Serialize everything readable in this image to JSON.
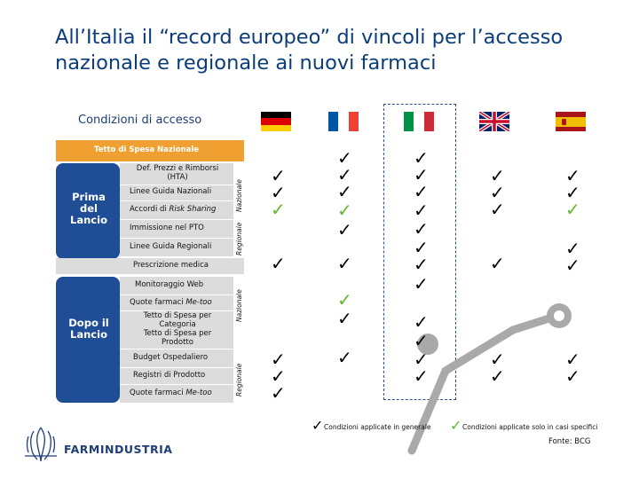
{
  "title": "All’Italia il “record europeo” di vincoli per l’accesso nazionale e regionale ai nuovi farmaci",
  "subtitle": "Condizioni di accesso",
  "top_bar_label": "Tetto di Spesa Nazionale",
  "phases": {
    "prima": "Prima del Lancio",
    "dopo": "Dopo il Lancio"
  },
  "level_labels": {
    "nazionale": "Nazionale",
    "regionale": "Regionale"
  },
  "rows": {
    "def_prezzi": "Def. Prezzi e Rimborsi (HTA)",
    "linee_guida_naz": "Linee Guida Nazionali",
    "accordi_prefix": "Accordi di",
    "accordi_italic": "Risk Sharing",
    "immissione": "Immissione nel PTO",
    "linee_guida_reg": "Linee Guida Regionali",
    "prescrizione": "Prescrizione medica",
    "monitoraggio": "Monitoraggio Web",
    "quote_prefix": "Quote farmaci",
    "quote_italic": "Me-too",
    "tetto_categoria": "Tetto di Spesa per Categoria",
    "tetto_prodotto": "Tetto di Spesa per Prodotto",
    "budget": "Budget Ospedaliero",
    "registri": "Registri di Prodotto",
    "quote_reg_prefix": "Quote farmaci",
    "quote_reg_italic": "Me-too"
  },
  "countries": [
    "Germany",
    "France",
    "Italy",
    "United Kingdom",
    "Spain"
  ],
  "legend": {
    "general": "Condizioni applicate in generale",
    "specific": "Condizioni applicate solo in casi specifici"
  },
  "source": "Fonte: BCG",
  "logo_text": "FARMINDUSTRIA",
  "check_glyph": "✓",
  "colors": {
    "title": "#0b3d7a",
    "accent_orange": "#f0a030",
    "navy": "#1f4e96",
    "row_gray": "#dcdcdc",
    "check_green": "#62b830",
    "pole_gray": "#a9a9a9"
  }
}
